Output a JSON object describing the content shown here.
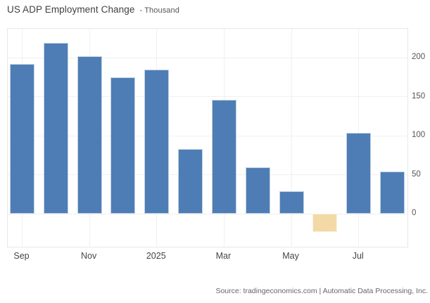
{
  "title": {
    "main": "US ADP Employment Change",
    "unit": "- Thousand"
  },
  "footer": {
    "source": "Source: tradingeconomics.com | Automatic Data Processing, Inc."
  },
  "colors": {
    "bar_positive": "#4e7db5",
    "bar_negative": "#f3d9a6",
    "grid_line": "#f0f0f0",
    "plot_border": "#e8e8e8",
    "y_axis_label": "#555555",
    "x_axis_label": "#454545",
    "title_text": "#3f3f3f",
    "source_text": "#666666"
  },
  "chart_data": {
    "type": "bar",
    "title": "US ADP Employment Change",
    "ylabel": "Thousand",
    "categories": [
      "Sep 2024",
      "Oct 2024",
      "Nov 2024",
      "Dec 2024",
      "Jan 2025",
      "Feb 2025",
      "Mar 2025",
      "Apr 2025",
      "May 2025",
      "Jun 2025",
      "Jul 2025",
      "Aug 2025"
    ],
    "values": [
      192,
      219,
      202,
      175,
      185,
      83,
      146,
      60,
      29,
      -23,
      104,
      54
    ],
    "x_tick_labels": [
      "Sep",
      "Nov",
      "2025",
      "Mar",
      "May",
      "Jul"
    ],
    "x_tick_indices": [
      0,
      2,
      4,
      6,
      8,
      10
    ],
    "y_ticks": [
      0,
      50,
      100,
      150,
      200
    ],
    "ylim": [
      -44,
      237
    ],
    "grid": true,
    "legend": false
  }
}
